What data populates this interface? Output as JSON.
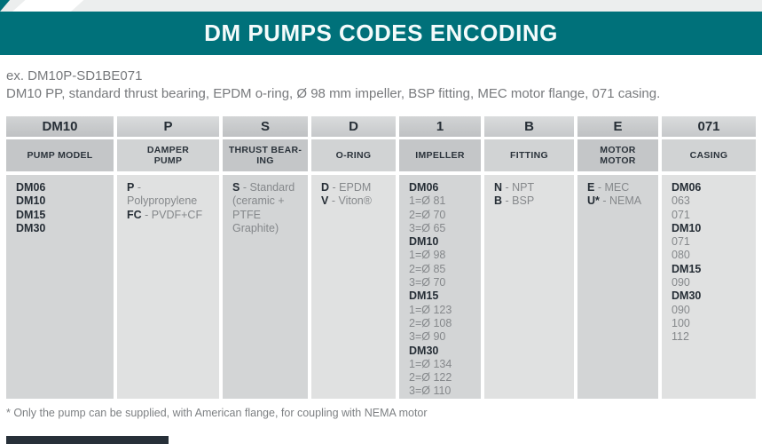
{
  "header": {
    "title": "DM PUMPS CODES ENCODING"
  },
  "example": {
    "code_line": "ex. DM10P-SD1BE071",
    "description": "DM10 PP, standard thrust bearing, EPDM o-ring, Ø 98 mm impeller, BSP fitting, MEC motor flange, 071 casing."
  },
  "colors": {
    "accent_teal": "#00717a",
    "dark_text": "#262e36",
    "gray_text": "#85888b",
    "cell_light": "#e0e1e1",
    "cell_dark": "#d3d5d6",
    "bottom_bar": "#273039"
  },
  "table": {
    "columns": [
      {
        "code": "DM10",
        "label": "PUMP MODEL",
        "lines": [
          {
            "b": "DM06"
          },
          {
            "b": "DM10"
          },
          {
            "b": "DM15"
          },
          {
            "b": "DM30"
          }
        ]
      },
      {
        "code": "P",
        "label": "DAMPER\nPUMP",
        "lines": [
          {
            "b": "P",
            "t": " - Polypropylene"
          },
          {
            "b": "FC",
            "t": " - PVDF+CF"
          }
        ]
      },
      {
        "code": "S",
        "label": "THRUST BEAR-\nING",
        "lines": [
          {
            "b": "S",
            "t": " - Standard"
          },
          {
            "t": "(ceramic +"
          },
          {
            "t": "PTFE Graphite)"
          }
        ]
      },
      {
        "code": "D",
        "label": "O-RING",
        "lines": [
          {
            "b": "D",
            "t": " - EPDM"
          },
          {
            "b": "V",
            "t": " - Viton®"
          }
        ]
      },
      {
        "code": "1",
        "label": "IMPELLER",
        "lines": [
          {
            "b": "DM06"
          },
          {
            "t": "1=Ø 81"
          },
          {
            "t": "2=Ø 70"
          },
          {
            "t": "3=Ø 65"
          },
          {
            "b": "DM10"
          },
          {
            "t": "1=Ø 98"
          },
          {
            "t": "2=Ø 85"
          },
          {
            "t": "3=Ø 70"
          },
          {
            "b": "DM15"
          },
          {
            "t": "1=Ø 123"
          },
          {
            "t": "2=Ø 108"
          },
          {
            "t": "3=Ø 90"
          },
          {
            "b": "DM30"
          },
          {
            "t": "1=Ø 134"
          },
          {
            "t": "2=Ø 122"
          },
          {
            "t": "3=Ø 110"
          }
        ]
      },
      {
        "code": "B",
        "label": "FITTING",
        "lines": [
          {
            "b": "N",
            "t": " - NPT"
          },
          {
            "b": "B",
            "t": " - BSP"
          }
        ]
      },
      {
        "code": "E",
        "label": "MOTOR\nMOTOR",
        "lines": [
          {
            "b": "E",
            "t": " - MEC"
          },
          {
            "b": "U*",
            "t": " - NEMA"
          }
        ]
      },
      {
        "code": "071",
        "label": "CASING",
        "lines": [
          {
            "b": "DM06"
          },
          {
            "t": "063"
          },
          {
            "t": "071"
          },
          {
            "b": "DM10"
          },
          {
            "t": "071"
          },
          {
            "t": "080"
          },
          {
            "b": "DM15"
          },
          {
            "t": "090"
          },
          {
            "b": "DM30"
          },
          {
            "t": "090"
          },
          {
            "t": "100"
          },
          {
            "t": "112"
          }
        ]
      }
    ]
  },
  "footnote": "* Only the pump can be supplied, with American flange, for coupling with NEMA motor"
}
